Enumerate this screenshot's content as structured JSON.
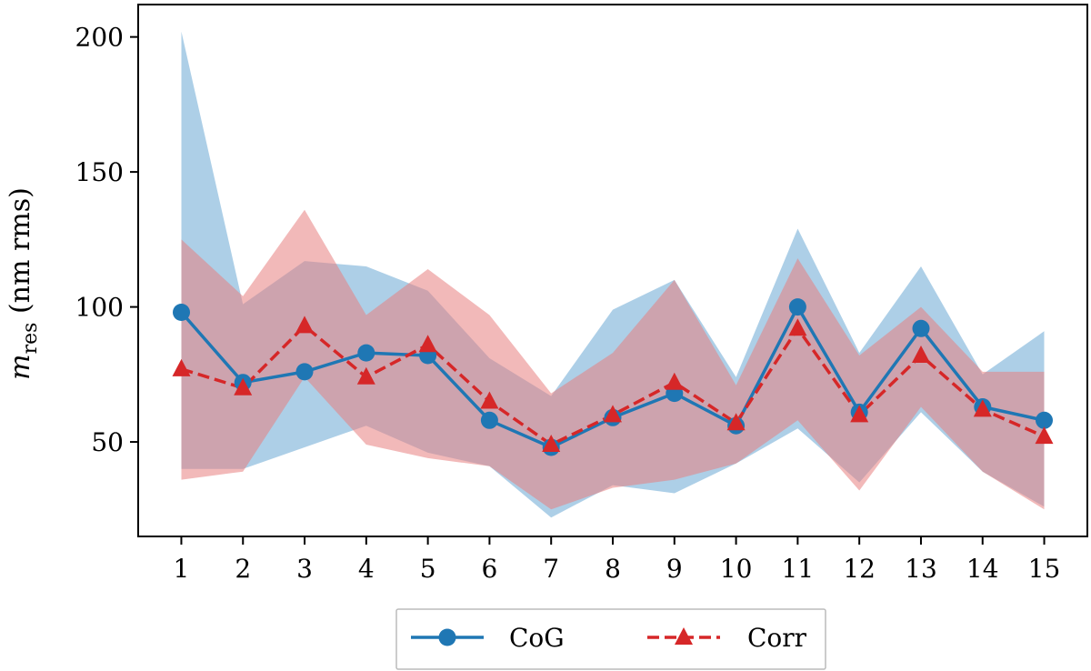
{
  "chart_data": {
    "type": "line",
    "title": "",
    "xlabel": "",
    "ylabel": {
      "main": "m",
      "sub": "res",
      "rest": " (nm rms)"
    },
    "x": [
      1,
      2,
      3,
      4,
      5,
      6,
      7,
      8,
      9,
      10,
      11,
      12,
      13,
      14,
      15
    ],
    "xticks": [
      "1",
      "2",
      "3",
      "4",
      "5",
      "6",
      "7",
      "8",
      "9",
      "10",
      "11",
      "12",
      "13",
      "14",
      "15"
    ],
    "yticks": [
      50,
      100,
      150,
      200
    ],
    "ytick_labels": [
      "50",
      "100",
      "150",
      "200"
    ],
    "xlim": [
      0.3,
      15.7
    ],
    "ylim": [
      15,
      212
    ],
    "legend_position": "bottom-center",
    "series": [
      {
        "name": "CoG",
        "color": "#1f77b4",
        "band_color": "#6aa8d4",
        "marker": "circle",
        "linestyle": "solid",
        "values": [
          98,
          72,
          76,
          83,
          82,
          58,
          48,
          59,
          68,
          56,
          100,
          61,
          92,
          63,
          58
        ],
        "upper": [
          202,
          101,
          117,
          115,
          106,
          81,
          67,
          99,
          110,
          74,
          129,
          83,
          115,
          75,
          91
        ],
        "lower": [
          40,
          40,
          48,
          56,
          46,
          41,
          22,
          34,
          31,
          42,
          55,
          35,
          61,
          39,
          26
        ]
      },
      {
        "name": "Corr",
        "color": "#d62728",
        "band_color": "#e88080",
        "marker": "triangle",
        "linestyle": "dashed",
        "values": [
          77,
          70,
          93,
          74,
          86,
          65,
          49,
          60,
          72,
          57,
          92,
          60,
          82,
          62,
          52
        ],
        "upper": [
          125,
          104,
          136,
          97,
          114,
          97,
          68,
          83,
          110,
          71,
          118,
          82,
          100,
          76,
          76
        ],
        "lower": [
          36,
          39,
          74,
          49,
          44,
          41,
          25,
          33,
          36,
          42,
          58,
          32,
          63,
          39,
          25
        ]
      }
    ]
  }
}
